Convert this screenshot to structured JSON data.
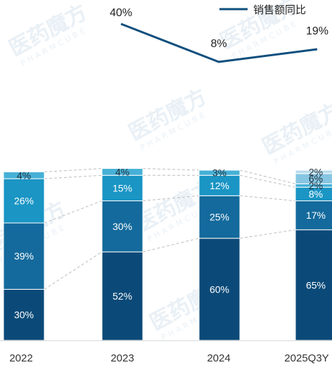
{
  "chart_data": {
    "type": "bar",
    "stacked": true,
    "categories": [
      "2022",
      "2023",
      "2024",
      "2025Q3Y"
    ],
    "segments": [
      {
        "values": [
          30,
          52,
          60,
          65
        ],
        "labels": [
          "30%",
          "52%",
          "60%",
          "65%"
        ],
        "color": "#0b4a78"
      },
      {
        "values": [
          39,
          30,
          25,
          17
        ],
        "labels": [
          "39%",
          "30%",
          "25%",
          "17%"
        ],
        "color": "#146a9c"
      },
      {
        "values": [
          26,
          15,
          12,
          8
        ],
        "labels": [
          "26%",
          "15%",
          "12%",
          "8%"
        ],
        "color": "#1a95c4"
      },
      {
        "values": [
          4,
          4,
          3,
          2
        ],
        "labels": [
          "4%",
          "4%",
          "3%",
          "2%"
        ],
        "color": "#46b0d6"
      },
      {
        "values": [
          null,
          null,
          null,
          6
        ],
        "labels": [
          "",
          "",
          "",
          "6%"
        ],
        "color": "#86c6e2"
      },
      {
        "values": [
          null,
          null,
          null,
          2
        ],
        "labels": [
          "",
          "",
          "",
          "2%"
        ],
        "color": "#b9dcec"
      }
    ],
    "line_series": {
      "name": "销售额同比",
      "values": [
        null,
        40,
        8,
        19
      ],
      "labels": [
        "",
        "40%",
        "8%",
        "19%"
      ],
      "color": "#0f4f7d"
    },
    "legend": {
      "position": "top-right"
    },
    "grid": false
  },
  "watermark": {
    "text": "医药魔方",
    "sub": "PHARMCUBE"
  }
}
